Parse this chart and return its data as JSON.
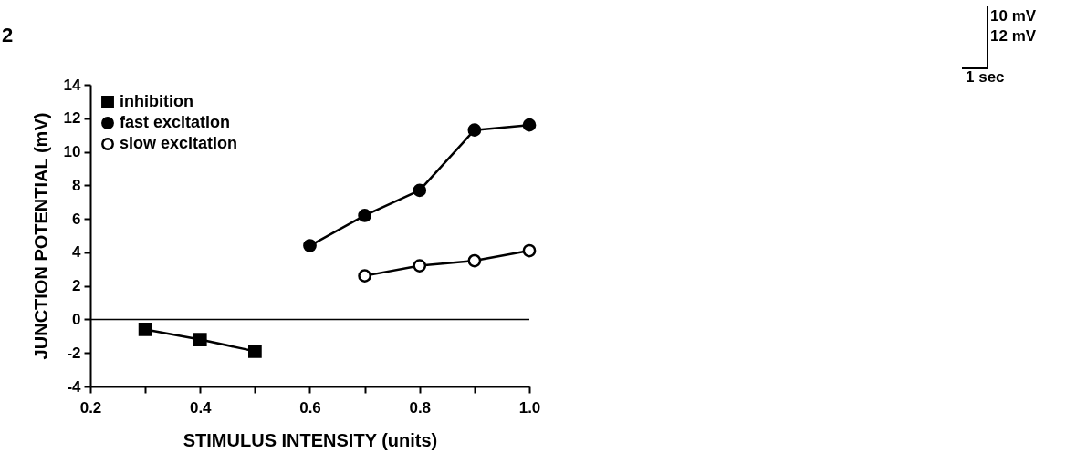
{
  "chart_data": {
    "type": "line",
    "title": "2",
    "xlabel": "STIMULUS INTENSITY (units)",
    "ylabel": "JUNCTION POTENTIAL (mV)",
    "xlim": [
      0.2,
      1.0
    ],
    "xticks": [
      {
        "value": 0.2,
        "label": "0.2"
      },
      {
        "value": 0.3,
        "label": null
      },
      {
        "value": 0.4,
        "label": "0.4"
      },
      {
        "value": 0.5,
        "label": null
      },
      {
        "value": 0.6,
        "label": "0.6"
      },
      {
        "value": 0.7,
        "label": null
      },
      {
        "value": 0.8,
        "label": "0.8"
      },
      {
        "value": 0.9,
        "label": null
      },
      {
        "value": 1.0,
        "label": "1.0"
      }
    ],
    "ylim": [
      -4,
      14
    ],
    "yticks": [
      -4,
      -2,
      0,
      2,
      4,
      6,
      8,
      10,
      12,
      14
    ],
    "grid": false,
    "legend": "top left",
    "line_style": "solid",
    "ref_lines": [
      {
        "axis": "y",
        "value": 0,
        "color": "#000000"
      }
    ],
    "series": [
      {
        "name": "inhibition",
        "color": "#000000",
        "marker": "square",
        "x": [
          0.3,
          0.4,
          0.5
        ],
        "values": [
          -0.6,
          -1.2,
          -1.9
        ]
      },
      {
        "name": "fast excitation",
        "color": "#000000",
        "marker": "circle",
        "x": [
          0.6,
          0.7,
          0.8,
          0.9,
          1.0
        ],
        "values": [
          4.4,
          6.2,
          7.7,
          11.3,
          11.6
        ]
      },
      {
        "name": "slow excitation",
        "color": "#000000",
        "marker": "circle",
        "colors": [
          "#ffffff",
          "#ffffff",
          "#ffffff",
          "#ffffff"
        ],
        "x": [
          0.7,
          0.8,
          0.9,
          1.0
        ],
        "values": [
          2.6,
          3.2,
          3.5,
          4.1
        ]
      }
    ],
    "annotations": [
      "10 mV",
      "12 mV",
      "1 sec"
    ]
  }
}
